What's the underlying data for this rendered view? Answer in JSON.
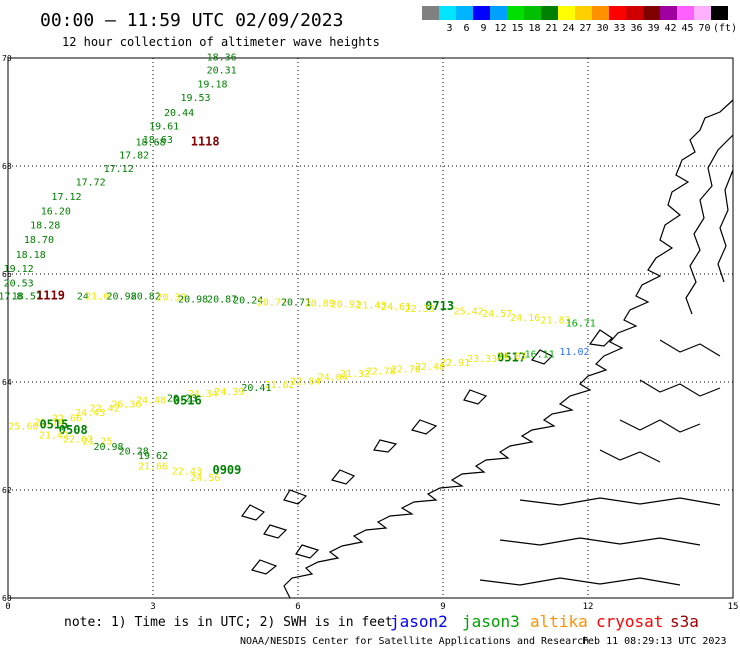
{
  "header": {
    "title": "00:00 – 11:59 UTC 02/09/2023",
    "subtitle": "12 hour collection of altimeter wave heights"
  },
  "legend": {
    "unit": "(ft)",
    "swatches": [
      {
        "label": "",
        "color": "#808080"
      },
      {
        "label": "3",
        "color": "#00e5ff"
      },
      {
        "label": "6",
        "color": "#00b4ff"
      },
      {
        "label": "9",
        "color": "#0000ff"
      },
      {
        "label": "12",
        "color": "#00a0ff"
      },
      {
        "label": "15",
        "color": "#00e000"
      },
      {
        "label": "18",
        "color": "#00c000"
      },
      {
        "label": "21",
        "color": "#008000"
      },
      {
        "label": "24",
        "color": "#ffff00"
      },
      {
        "label": "27",
        "color": "#ffd000"
      },
      {
        "label": "30",
        "color": "#ff9000"
      },
      {
        "label": "33",
        "color": "#ff0000"
      },
      {
        "label": "36",
        "color": "#d00000"
      },
      {
        "label": "39",
        "color": "#800000"
      },
      {
        "label": "42",
        "color": "#a000a0"
      },
      {
        "label": "45",
        "color": "#ff60ff"
      },
      {
        "label": "70",
        "color": "#ffb0ff"
      },
      {
        "label": "",
        "color": "#000000"
      }
    ]
  },
  "axes": {
    "lat_ticks": [
      "70",
      "68",
      "66",
      "64",
      "62",
      "60"
    ],
    "lon_ticks": [
      "0",
      "3",
      "6",
      "9",
      "12",
      "15"
    ]
  },
  "footer": {
    "note": "note: 1) Time is in UTC; 2) SWH is in feet",
    "satellites": [
      {
        "name": "jason2",
        "color": "#0000ff"
      },
      {
        "name": "jason3",
        "color": "#00a000"
      },
      {
        "name": "altika",
        "color": "#ff9000"
      },
      {
        "name": "cryosat",
        "color": "#ff0000"
      },
      {
        "name": "s3a",
        "color": "#a00000"
      }
    ],
    "credit": "NOAA/NESDIS Center for Satellite Applications and Research",
    "timestamp": "Feb 11 08:29:13 UTC 2023"
  },
  "colors": {
    "jason3": "#008000",
    "jason3_light": "#00b000",
    "yellow": "#f0e800",
    "dark_red": "#800000",
    "orange": "#e09000",
    "blue": "#3070ff"
  },
  "track_labels": [
    {
      "text": "18.36",
      "lon": 4.42,
      "lat": 69.95,
      "color": "jason3"
    },
    {
      "text": "20.31",
      "lon": 4.42,
      "lat": 69.71,
      "color": "jason3"
    },
    {
      "text": "19.18",
      "lon": 4.23,
      "lat": 69.45,
      "color": "jason3"
    },
    {
      "text": "19.53",
      "lon": 3.88,
      "lat": 69.2,
      "color": "jason3"
    },
    {
      "text": "20.44",
      "lon": 3.54,
      "lat": 68.93,
      "color": "jason3"
    },
    {
      "text": "19.61",
      "lon": 3.23,
      "lat": 68.68,
      "color": "jason3"
    },
    {
      "text": "18.63",
      "lon": 3.1,
      "lat": 68.43,
      "color": "jason3"
    },
    {
      "text": "18.68",
      "lon": 2.95,
      "lat": 68.38,
      "color": "jason3"
    },
    {
      "text": "17.82",
      "lon": 2.61,
      "lat": 68.14,
      "color": "jason3"
    },
    {
      "text": "17.12",
      "lon": 2.29,
      "lat": 67.89,
      "color": "jason3"
    },
    {
      "text": "17.72",
      "lon": 1.71,
      "lat": 67.64,
      "color": "jason3"
    },
    {
      "text": "17.12",
      "lon": 1.21,
      "lat": 67.37,
      "color": "jason3"
    },
    {
      "text": "16.20",
      "lon": 0.99,
      "lat": 67.1,
      "color": "jason3"
    },
    {
      "text": "18.28",
      "lon": 0.77,
      "lat": 66.84,
      "color": "jason3"
    },
    {
      "text": "18.70",
      "lon": 0.64,
      "lat": 66.57,
      "color": "jason3"
    },
    {
      "text": "18.18",
      "lon": 0.47,
      "lat": 66.3,
      "color": "jason3"
    },
    {
      "text": "19.12",
      "lon": 0.22,
      "lat": 66.04,
      "color": "jason3"
    },
    {
      "text": "20.53",
      "lon": 0.22,
      "lat": 65.77,
      "color": "jason3"
    },
    {
      "text": "17.8",
      "lon": 0.05,
      "lat": 65.53,
      "color": "jason3"
    },
    {
      "text": "18.57",
      "lon": 0.39,
      "lat": 65.53,
      "color": "jason3"
    },
    {
      "text": "1119",
      "lon": 0.88,
      "lat": 65.53,
      "color": "dark_red",
      "bold": true,
      "size": 12
    },
    {
      "text": "24",
      "lon": 1.55,
      "lat": 65.53,
      "color": "jason3"
    },
    {
      "text": "21.0",
      "lon": 1.85,
      "lat": 65.53,
      "color": "yellow"
    },
    {
      "text": "20.98",
      "lon": 2.35,
      "lat": 65.53,
      "color": "jason3"
    },
    {
      "text": "20.82",
      "lon": 2.85,
      "lat": 65.53,
      "color": "jason3"
    },
    {
      "text": "20.32",
      "lon": 3.38,
      "lat": 65.51,
      "color": "yellow"
    },
    {
      "text": "20.98",
      "lon": 3.83,
      "lat": 65.47,
      "color": "jason3"
    },
    {
      "text": "20.87",
      "lon": 4.43,
      "lat": 65.47,
      "color": "jason3"
    },
    {
      "text": "20.24",
      "lon": 4.97,
      "lat": 65.45,
      "color": "jason3"
    },
    {
      "text": "20.77",
      "lon": 5.46,
      "lat": 65.42,
      "color": "yellow"
    },
    {
      "text": "20.71",
      "lon": 5.96,
      "lat": 65.42,
      "color": "jason3"
    },
    {
      "text": "20.89",
      "lon": 6.45,
      "lat": 65.4,
      "color": "yellow"
    },
    {
      "text": "20.92",
      "lon": 6.99,
      "lat": 65.38,
      "color": "yellow"
    },
    {
      "text": "21.43",
      "lon": 7.52,
      "lat": 65.36,
      "color": "yellow"
    },
    {
      "text": "24.61",
      "lon": 8.03,
      "lat": 65.33,
      "color": "yellow"
    },
    {
      "text": "0713",
      "lon": 8.93,
      "lat": 65.33,
      "color": "jason3",
      "bold": true,
      "size": 12
    },
    {
      "text": "22.33",
      "lon": 8.52,
      "lat": 65.3,
      "color": "yellow"
    },
    {
      "text": "25.42",
      "lon": 9.53,
      "lat": 65.25,
      "color": "yellow"
    },
    {
      "text": "24.57",
      "lon": 10.12,
      "lat": 65.2,
      "color": "yellow"
    },
    {
      "text": "24.16",
      "lon": 10.7,
      "lat": 65.13,
      "color": "yellow"
    },
    {
      "text": "21.83",
      "lon": 11.33,
      "lat": 65.08,
      "color": "yellow"
    },
    {
      "text": "16.71",
      "lon": 11.85,
      "lat": 65.03,
      "color": "jason3_light"
    },
    {
      "text": "16.11",
      "lon": 11.0,
      "lat": 64.45,
      "color": "jason3_light"
    },
    {
      "text": "11.02",
      "lon": 11.72,
      "lat": 64.5,
      "color": "blue"
    },
    {
      "text": "0517",
      "lon": 10.42,
      "lat": 64.38,
      "color": "jason3",
      "bold": true,
      "size": 12
    },
    {
      "text": "24.03",
      "lon": 10.42,
      "lat": 64.42,
      "color": "yellow"
    },
    {
      "text": "23.33",
      "lon": 9.81,
      "lat": 64.37,
      "color": "yellow"
    },
    {
      "text": "22.91",
      "lon": 9.25,
      "lat": 64.3,
      "color": "yellow"
    },
    {
      "text": "22.40",
      "lon": 8.73,
      "lat": 64.22,
      "color": "yellow"
    },
    {
      "text": "22.70",
      "lon": 8.23,
      "lat": 64.18,
      "color": "yellow"
    },
    {
      "text": "22.78",
      "lon": 7.71,
      "lat": 64.14,
      "color": "yellow"
    },
    {
      "text": "21.32",
      "lon": 7.18,
      "lat": 64.09,
      "color": "yellow"
    },
    {
      "text": "24.04",
      "lon": 6.72,
      "lat": 64.03,
      "color": "yellow"
    },
    {
      "text": "22.84",
      "lon": 6.15,
      "lat": 63.95,
      "color": "yellow"
    },
    {
      "text": "21.62",
      "lon": 5.62,
      "lat": 63.89,
      "color": "yellow"
    },
    {
      "text": "20.41",
      "lon": 5.14,
      "lat": 63.83,
      "color": "jason3"
    },
    {
      "text": "24.39",
      "lon": 4.58,
      "lat": 63.76,
      "color": "yellow"
    },
    {
      "text": "24.34",
      "lon": 4.03,
      "lat": 63.72,
      "color": "yellow"
    },
    {
      "text": "20.23",
      "lon": 3.6,
      "lat": 63.64,
      "color": "jason3"
    },
    {
      "text": "0516",
      "lon": 3.71,
      "lat": 63.58,
      "color": "jason3",
      "bold": true,
      "size": 12
    },
    {
      "text": "24.48",
      "lon": 2.96,
      "lat": 63.6,
      "color": "yellow"
    },
    {
      "text": "26.36",
      "lon": 2.45,
      "lat": 63.53,
      "color": "yellow"
    },
    {
      "text": "22.42",
      "lon": 2.0,
      "lat": 63.45,
      "color": "yellow"
    },
    {
      "text": "24.45",
      "lon": 1.7,
      "lat": 63.37,
      "color": "yellow"
    },
    {
      "text": "22.66",
      "lon": 1.22,
      "lat": 63.27,
      "color": "yellow"
    },
    {
      "text": "21.74",
      "lon": 0.85,
      "lat": 63.19,
      "color": "yellow"
    },
    {
      "text": "25.60",
      "lon": 0.32,
      "lat": 63.12,
      "color": "yellow"
    },
    {
      "text": "0515",
      "lon": 0.95,
      "lat": 63.14,
      "color": "jason3",
      "bold": true,
      "size": 12
    },
    {
      "text": "0508",
      "lon": 1.35,
      "lat": 63.04,
      "color": "jason3",
      "bold": true,
      "size": 12
    },
    {
      "text": "21.42",
      "lon": 0.95,
      "lat": 62.95,
      "color": "yellow"
    },
    {
      "text": "22.62",
      "lon": 1.45,
      "lat": 62.88,
      "color": "yellow"
    },
    {
      "text": "21.25",
      "lon": 1.85,
      "lat": 62.84,
      "color": "yellow"
    },
    {
      "text": "20.98",
      "lon": 2.08,
      "lat": 62.74,
      "color": "jason3"
    },
    {
      "text": "20.28",
      "lon": 2.6,
      "lat": 62.66,
      "color": "jason3"
    },
    {
      "text": "19.62",
      "lon": 3.0,
      "lat": 62.57,
      "color": "jason3"
    },
    {
      "text": "21.66",
      "lon": 3.0,
      "lat": 62.38,
      "color": "yellow"
    },
    {
      "text": "22.43",
      "lon": 3.7,
      "lat": 62.29,
      "color": "yellow"
    },
    {
      "text": "24.56",
      "lon": 4.08,
      "lat": 62.17,
      "color": "yellow"
    },
    {
      "text": "0909",
      "lon": 4.53,
      "lat": 62.3,
      "color": "jason3",
      "bold": true,
      "size": 12
    },
    {
      "text": "1118",
      "lon": 4.08,
      "lat": 68.38,
      "color": "dark_red",
      "bold": true,
      "size": 12
    }
  ]
}
